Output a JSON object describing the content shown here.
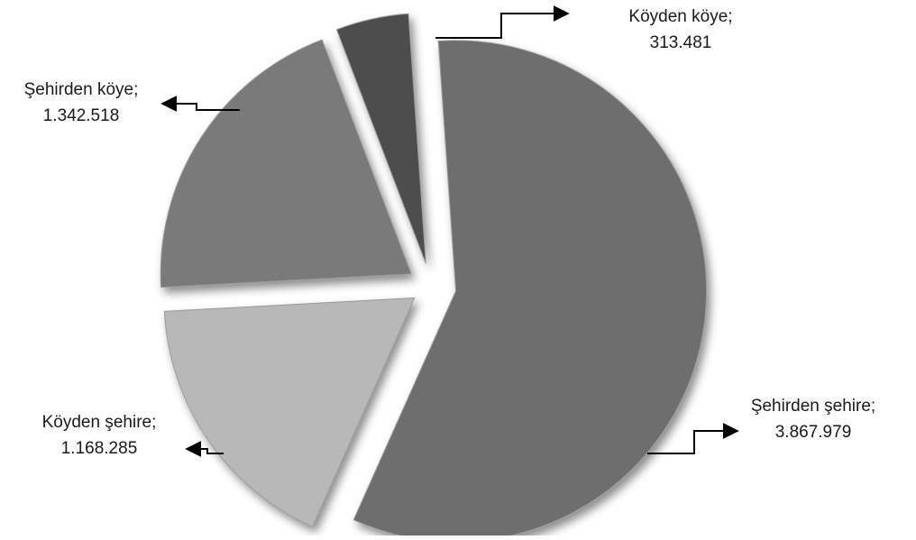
{
  "chart_data": {
    "type": "pie",
    "title": "",
    "slices": [
      {
        "category": "Şehirden şehire",
        "value": 3867979,
        "label_line1": "Şehirden şehire;",
        "label_line2": "3.867.979",
        "color": "#6e6e6e"
      },
      {
        "category": "Köyden şehire",
        "value": 1168285,
        "label_line1": "Köyden şehire;",
        "label_line2": "1.168.285",
        "color": "#b8b8b8"
      },
      {
        "category": "Şehirden köye",
        "value": 1342518,
        "label_line1": "Şehirden köye;",
        "label_line2": "1.342.518",
        "color": "#7a7a7a"
      },
      {
        "category": "Köyden köye",
        "value": 313481,
        "label_line1": "Köyden köye;",
        "label_line2": "313.481",
        "color": "#4e4e4e"
      }
    ],
    "exploded": true,
    "legend": "none",
    "data_labels": "outside with arrow leaders"
  }
}
